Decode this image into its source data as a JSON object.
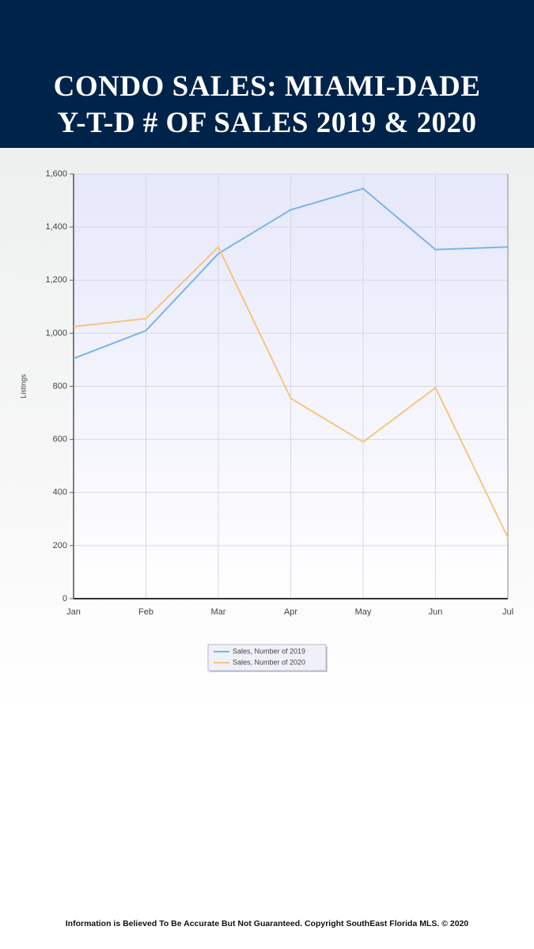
{
  "chart_data": {
    "type": "line",
    "title": "CONDO SALES: MIAMI-DADE",
    "subtitle": "Y-T-D # OF SALES 2019 & 2020",
    "y_label": "Listings",
    "categories": [
      "Jan",
      "Feb",
      "Mar",
      "Apr",
      "May",
      "Jun",
      "Jul"
    ],
    "series": [
      {
        "name": "Sales, Number of 2019",
        "color": "#7ab4e6",
        "values": [
          905,
          1010,
          1300,
          1465,
          1545,
          1315,
          1325
        ]
      },
      {
        "name": "Sales, Number of 2020",
        "color": "#f7c57f",
        "values": [
          1025,
          1055,
          1325,
          755,
          590,
          795,
          230
        ]
      }
    ],
    "ylim": [
      0,
      1600
    ],
    "yticks": [
      0,
      200,
      400,
      600,
      800,
      {
        "value": 1000,
        "label": "1,000"
      },
      {
        "value": 1200,
        "label": "1,200"
      },
      {
        "value": 1400,
        "label": "1,400"
      },
      {
        "value": 1600,
        "label": "1,600"
      }
    ],
    "grid": true,
    "legend": "bottom",
    "footnote": "Information is Believed To Be Accurate But Not Guaranteed. Copyright SouthEast Florida MLS. © 2020"
  }
}
